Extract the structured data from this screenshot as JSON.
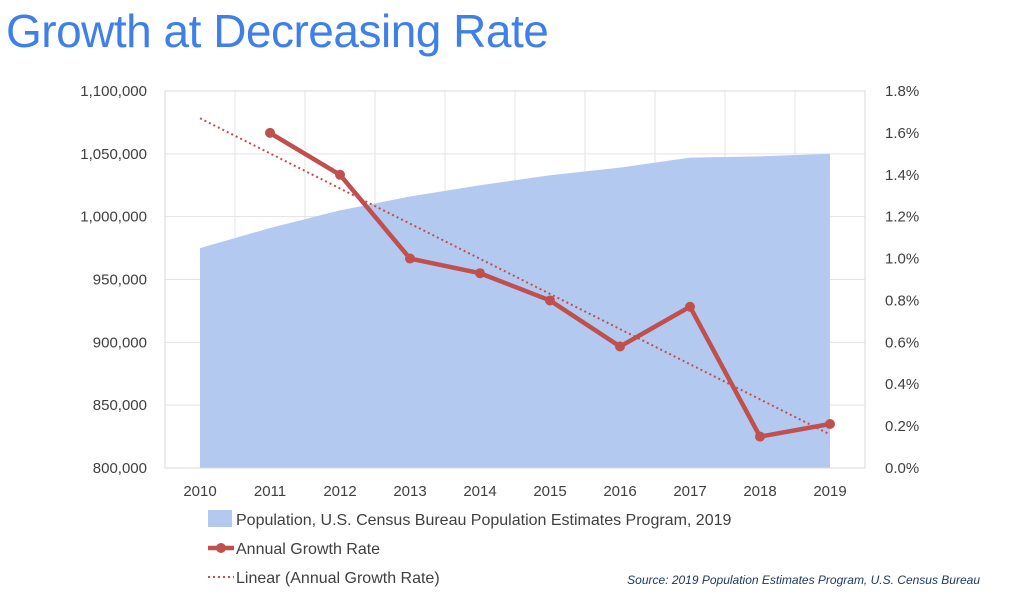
{
  "title": "Growth at Decreasing Rate",
  "source": "Source: 2019 Population Estimates Program, U.S. Census Bureau",
  "chart_data": {
    "type": "area",
    "x": [
      2010,
      2011,
      2012,
      2013,
      2014,
      2015,
      2016,
      2017,
      2018,
      2019
    ],
    "y_left": {
      "ticks": [
        "800,000",
        "850,000",
        "900,000",
        "950,000",
        "1,000,000",
        "1,050,000",
        "1,100,000"
      ],
      "lim": [
        800000,
        1100000
      ]
    },
    "y_right": {
      "ticks": [
        "0.0%",
        "0.2%",
        "0.4%",
        "0.6%",
        "0.8%",
        "1.0%",
        "1.2%",
        "1.4%",
        "1.6%",
        "1.8%"
      ],
      "lim": [
        0,
        1.8
      ]
    },
    "grid": true,
    "legend_position": "bottom",
    "series": [
      {
        "name": "Population, U.S. Census Bureau Population Estimates Program, 2019",
        "kind": "area",
        "axis": "left",
        "color": "#b4c9f0",
        "values": [
          975000,
          991000,
          1005000,
          1016000,
          1025000,
          1033000,
          1039000,
          1047000,
          1048000,
          1050000
        ]
      },
      {
        "name": "Annual Growth Rate",
        "kind": "line-markers",
        "axis": "right",
        "color": "#c0504d",
        "x": [
          2011,
          2012,
          2013,
          2014,
          2015,
          2016,
          2017,
          2018,
          2019
        ],
        "values": [
          1.6,
          1.4,
          1.0,
          0.93,
          0.8,
          0.58,
          0.77,
          0.15,
          0.21
        ]
      },
      {
        "name": "Linear (Annual Growth Rate)",
        "kind": "trendline-dotted",
        "axis": "right",
        "color": "#c0504d",
        "x": [
          2010,
          2019
        ],
        "values": [
          1.67,
          0.16
        ]
      }
    ]
  }
}
